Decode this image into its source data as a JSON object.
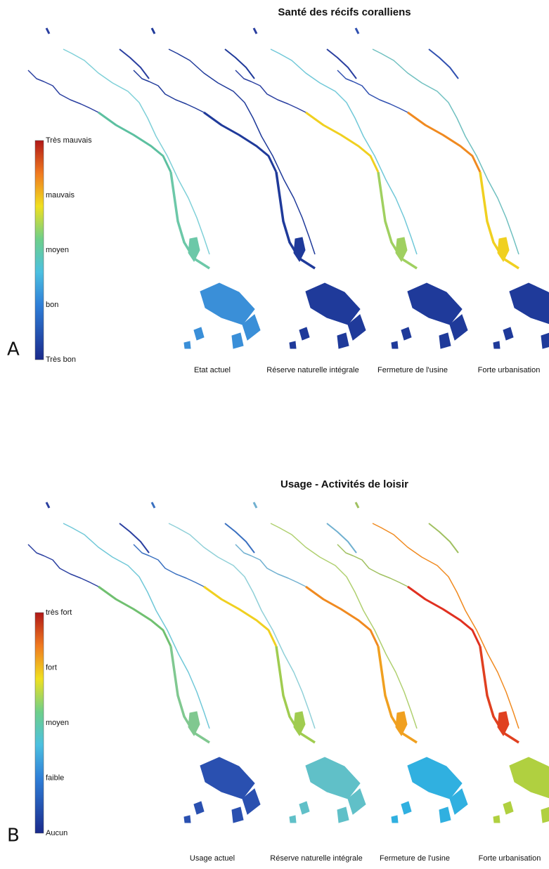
{
  "panels": [
    {
      "letter": "A",
      "title": "Santé des récifs coralliens",
      "legend": [
        "Très mauvais",
        "mauvais",
        "moyen",
        "bon",
        "Très bon"
      ],
      "scenarios": [
        "Etat actuel",
        "Réserve naturelle intégrale",
        "Fermeture de l'usine",
        "Forte urbanisation"
      ]
    },
    {
      "letter": "B",
      "title": "Usage - Activités de loisir",
      "legend": [
        "très fort",
        "fort",
        "moyen",
        "faible",
        "Aucun"
      ],
      "scenarios": [
        "Usage actuel",
        "Réserve naturelle intégrale",
        "Fermeture de l'usine",
        "Forte urbanisation"
      ]
    }
  ]
}
